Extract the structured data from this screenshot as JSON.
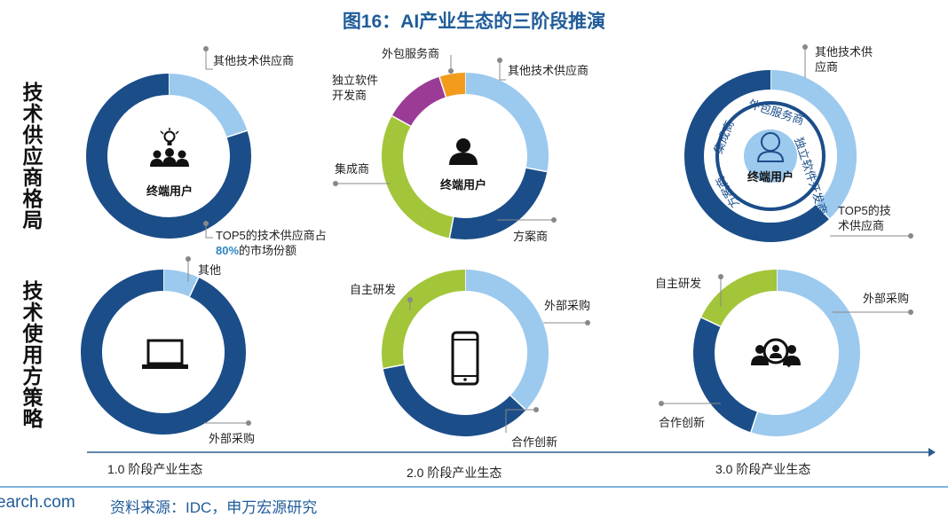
{
  "title": "图16：AI产业生态的三阶段推演",
  "row_labels": {
    "suppliers": "技术供应商格局",
    "usage": "技术使用方策略"
  },
  "stages": [
    "1.0 阶段产业生态",
    "2.0 阶段产业生态",
    "3.0 阶段产业生态"
  ],
  "center_labels": {
    "end_user": "终端用户"
  },
  "icons": {
    "s1_top": "bulb-people-icon",
    "s2_top": "person-icon",
    "s3_top": "person-outline-icon",
    "s1_bottom": "laptop-icon",
    "s2_bottom": "smartphone-icon",
    "s3_bottom": "ai-people-search-icon"
  },
  "colors": {
    "dark_blue": "#1b4d89",
    "light_blue": "#9cc9ee",
    "green": "#a3c53a",
    "purple": "#9b3b96",
    "orange": "#f39b1c",
    "title": "#1f5c99"
  },
  "donuts": {
    "s1_top": {
      "segments": [
        {
          "label": "其他技术供应商",
          "value": 20,
          "color": "#9cc9ee"
        },
        {
          "label_line1": "TOP5的技术供应商占",
          "label_highlight": "80%",
          "label_line2": "的市场份额",
          "value": 80,
          "color": "#1b4d89"
        }
      ]
    },
    "s2_top": {
      "segments": [
        {
          "label": "其他技术供应商",
          "value": 28,
          "color": "#9cc9ee"
        },
        {
          "label": "方案商",
          "value": 25,
          "color": "#1b4d89"
        },
        {
          "label": "集成商",
          "value": 30,
          "color": "#a3c53a"
        },
        {
          "label_line1": "独立软件",
          "label_line2": "开发商",
          "value": 12,
          "color": "#9b3b96"
        },
        {
          "label": "外包服务商",
          "value": 5,
          "color": "#f39b1c"
        }
      ]
    },
    "s3_top": {
      "outer": [
        {
          "label_line1": "其他技术供",
          "label_line2": "应商",
          "value": 38,
          "color": "#9cc9ee"
        },
        {
          "label_line1": "TOP5的技",
          "label_line2": "术供应商",
          "value": 62,
          "color": "#1b4d89"
        }
      ],
      "inner_labels": [
        "外包服务商",
        "独立软件开发商",
        "方案商",
        "集成商"
      ]
    },
    "s1_bottom": {
      "segments": [
        {
          "label": "其他",
          "value": 7,
          "color": "#9cc9ee"
        },
        {
          "label": "外部采购",
          "value": 93,
          "color": "#1b4d89"
        }
      ]
    },
    "s2_bottom": {
      "segments": [
        {
          "label": "外部采购",
          "value": 37,
          "color": "#9cc9ee"
        },
        {
          "label": "合作创新",
          "value": 35,
          "color": "#1b4d89"
        },
        {
          "label": "自主研发",
          "value": 28,
          "color": "#a3c53a"
        }
      ]
    },
    "s3_bottom": {
      "segments": [
        {
          "label": "外部采购",
          "value": 55,
          "color": "#9cc9ee"
        },
        {
          "label": "合作创新",
          "value": 27,
          "color": "#1b4d89"
        },
        {
          "label": "自主研发",
          "value": 18,
          "color": "#a3c53a"
        }
      ]
    }
  },
  "footer": {
    "site": "earch.com",
    "source": "资料来源：IDC，申万宏源研究"
  }
}
